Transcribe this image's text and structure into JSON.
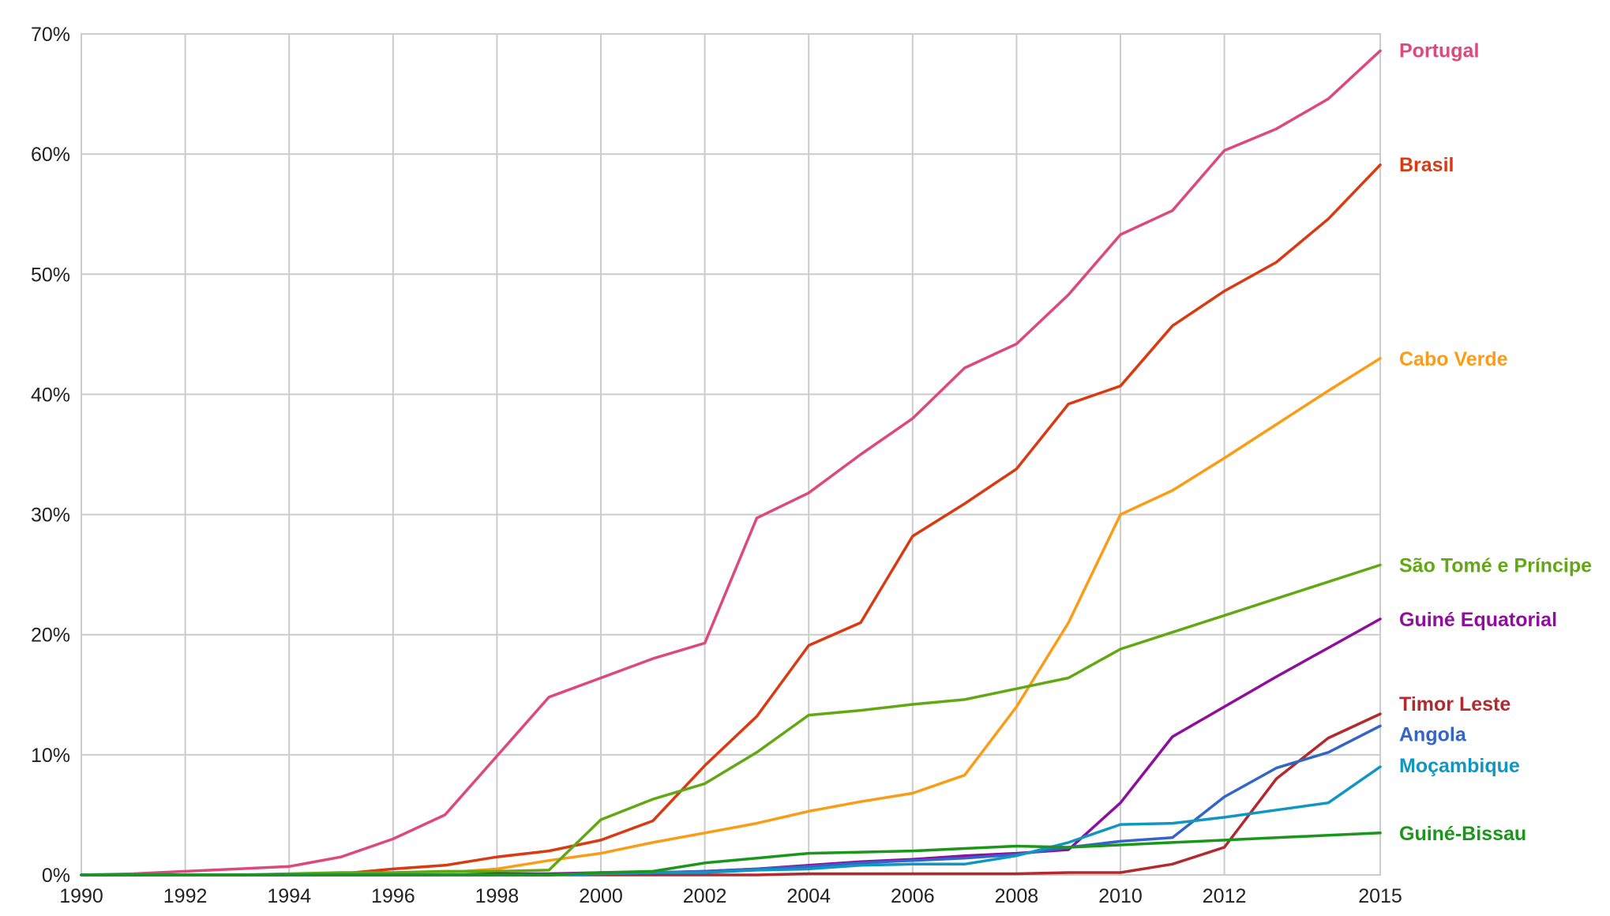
{
  "chart_data": {
    "type": "line",
    "x": [
      1990,
      1991,
      1992,
      1993,
      1994,
      1995,
      1996,
      1997,
      1998,
      1999,
      2000,
      2001,
      2002,
      2003,
      2004,
      2005,
      2006,
      2007,
      2008,
      2009,
      2010,
      2011,
      2012,
      2013,
      2014,
      2015
    ],
    "xlim": [
      1990,
      2015
    ],
    "ylim": [
      0,
      70
    ],
    "x_ticks": [
      "1990",
      "1992",
      "1994",
      "1996",
      "1998",
      "2000",
      "2002",
      "2004",
      "2006",
      "2008",
      "2010",
      "2012",
      "2015"
    ],
    "x_tick_values": [
      1990,
      1992,
      1994,
      1996,
      1998,
      2000,
      2002,
      2004,
      2006,
      2008,
      2010,
      2012,
      2015
    ],
    "y_ticks": [
      "0%",
      "10%",
      "20%",
      "30%",
      "40%",
      "50%",
      "60%",
      "70%"
    ],
    "y_tick_values": [
      0,
      10,
      20,
      30,
      40,
      50,
      60,
      70
    ],
    "grid": true,
    "legend": "end-of-line labels on right",
    "series": [
      {
        "name": "Portugal",
        "color": "#dc4a7a",
        "values": [
          0,
          0.1,
          0.3,
          0.5,
          0.7,
          1.5,
          3.0,
          5.0,
          9.9,
          14.8,
          16.4,
          18.0,
          19.3,
          29.7,
          31.8,
          35.0,
          38.0,
          42.2,
          44.2,
          48.3,
          53.3,
          55.3,
          60.3,
          62.1,
          64.6,
          68.6
        ]
      },
      {
        "name": "Brasil",
        "color": "#d93a12",
        "values": [
          0,
          0,
          0,
          0,
          0,
          0.1,
          0.5,
          0.8,
          1.5,
          2.0,
          2.9,
          4.5,
          9.1,
          13.2,
          19.1,
          21.0,
          28.2,
          30.9,
          33.8,
          39.2,
          40.7,
          45.7,
          48.6,
          51.0,
          54.6,
          59.1
        ]
      },
      {
        "name": "Cabo Verde",
        "color": "#fb9c16",
        "values": [
          0,
          0,
          0,
          0,
          0,
          0,
          0,
          0.2,
          0.5,
          1.2,
          1.8,
          2.7,
          3.5,
          4.3,
          5.3,
          6.1,
          6.8,
          8.3,
          14.0,
          21.0,
          30.0,
          32.0,
          34.7,
          37.5,
          40.3,
          43.0
        ]
      },
      {
        "name": "São Tomé e Príncipe",
        "color": "#62a813",
        "values": [
          0,
          0,
          0,
          0,
          0.1,
          0.2,
          0.2,
          0.3,
          0.3,
          0.4,
          4.6,
          6.3,
          7.6,
          10.2,
          13.3,
          13.7,
          14.2,
          14.6,
          15.5,
          16.4,
          18.8,
          20.2,
          21.6,
          23.0,
          24.4,
          25.8
        ]
      },
      {
        "name": "Guiné Equatorial",
        "color": "#8e0f9b",
        "values": [
          0,
          0,
          0,
          0,
          0,
          0,
          0,
          0,
          0.1,
          0.1,
          0.2,
          0.2,
          0.3,
          0.5,
          0.8,
          1.1,
          1.3,
          1.6,
          1.8,
          2.1,
          6.0,
          11.5,
          14.0,
          16.5,
          18.9,
          21.3
        ]
      },
      {
        "name": "Timor Leste",
        "color": "#b22a2d",
        "values": [
          0,
          0,
          0,
          0,
          0,
          0,
          0,
          0,
          0,
          0,
          0,
          0,
          0,
          0,
          0.1,
          0.1,
          0.1,
          0.1,
          0.1,
          0.2,
          0.2,
          0.9,
          2.3,
          8.0,
          11.4,
          13.4
        ]
      },
      {
        "name": "Angola",
        "color": "#3364c8",
        "values": [
          0,
          0,
          0,
          0,
          0,
          0,
          0,
          0,
          0,
          0,
          0.1,
          0.2,
          0.3,
          0.5,
          0.7,
          1.0,
          1.2,
          1.4,
          1.7,
          2.3,
          2.8,
          3.1,
          6.5,
          8.9,
          10.2,
          12.4
        ]
      },
      {
        "name": "Moçambique",
        "color": "#0f97c1",
        "values": [
          0,
          0,
          0,
          0,
          0,
          0,
          0,
          0,
          0,
          0,
          0.1,
          0.2,
          0.2,
          0.4,
          0.5,
          0.8,
          0.9,
          0.9,
          1.6,
          2.7,
          4.2,
          4.3,
          4.8,
          5.4,
          6.0,
          9.0
        ]
      },
      {
        "name": "Guiné-Bissau",
        "color": "#1a961a",
        "values": [
          0,
          0,
          0,
          0,
          0,
          0,
          0,
          0,
          0,
          0,
          0.2,
          0.3,
          1.0,
          1.4,
          1.8,
          1.9,
          2.0,
          2.2,
          2.4,
          2.3,
          2.5,
          2.7,
          2.9,
          3.1,
          3.3,
          3.5
        ]
      }
    ]
  }
}
